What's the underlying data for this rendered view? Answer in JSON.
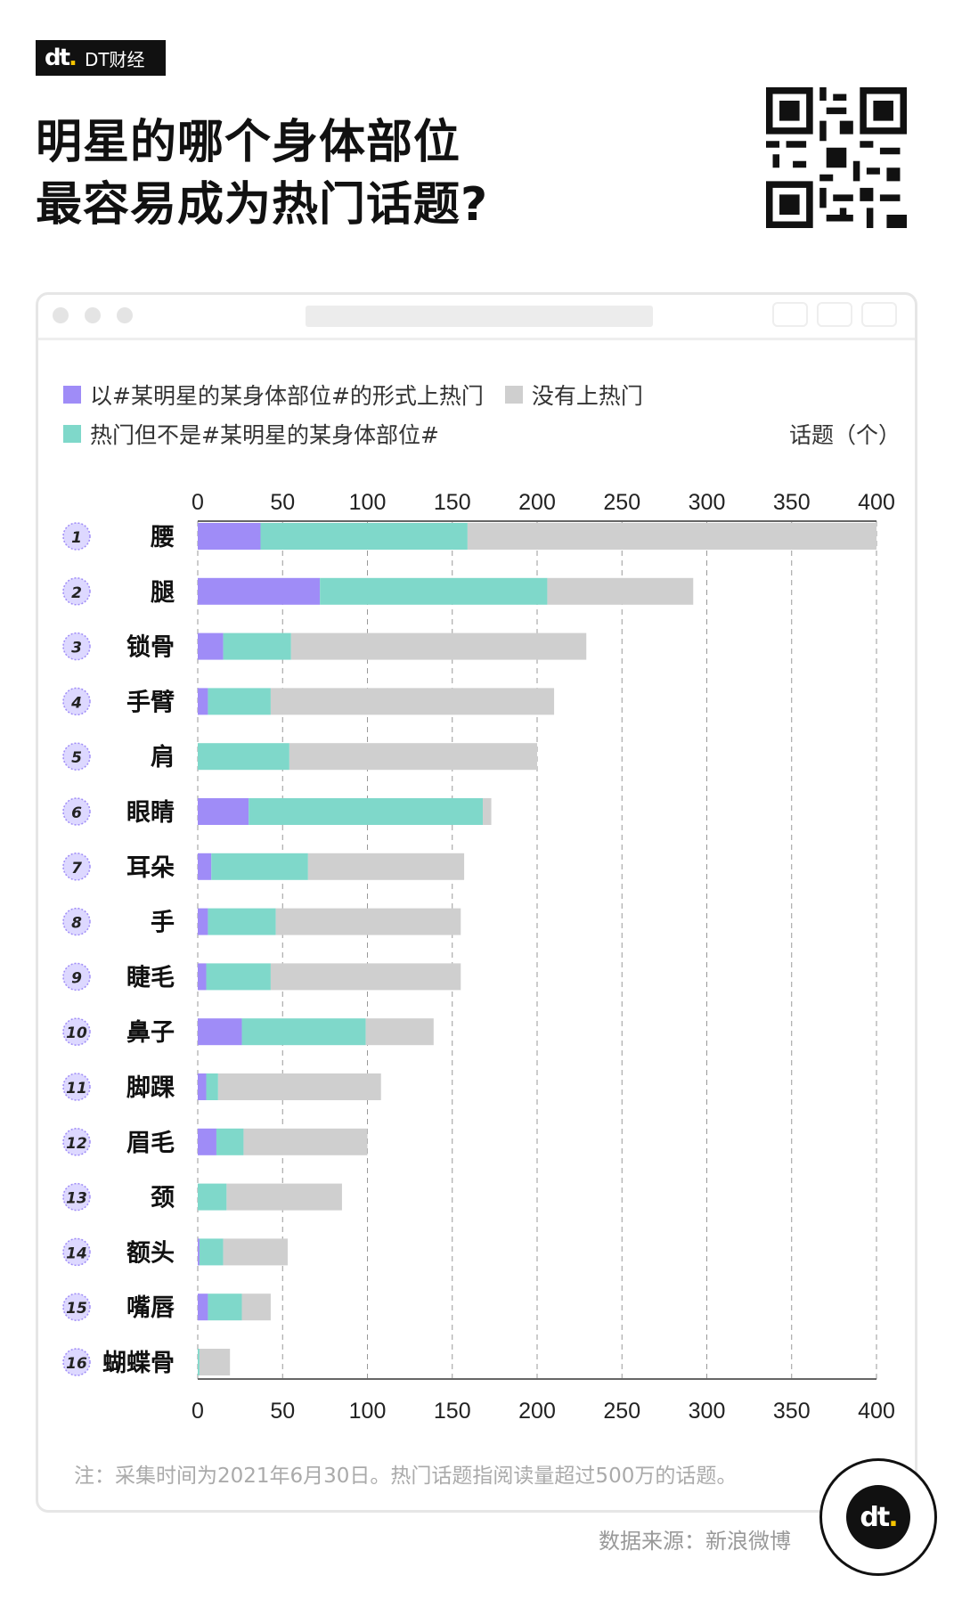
{
  "brand": {
    "name": "DT财经",
    "mark": "dt"
  },
  "title_lines": [
    "明星的哪个身体部位",
    "最容易成为热门话题?"
  ],
  "note": "注：采集时间为2021年6月30日。热门话题指阅读量超过500万的话题。",
  "source": "数据来源：新浪微博",
  "colors": {
    "purple": "#9f8cf7",
    "teal": "#7fd8ca",
    "gray": "#cfcfcf"
  },
  "chart_data": {
    "type": "bar",
    "stacked": true,
    "orientation": "horizontal",
    "unit_label": "话题（个）",
    "xlim": [
      0,
      400
    ],
    "ticks": [
      0,
      50,
      100,
      150,
      200,
      250,
      300,
      350,
      400
    ],
    "grid": true,
    "legend": [
      {
        "name": "以#某明星的某身体部位#的形式上热门",
        "color": "#9f8cf7"
      },
      {
        "name": "没有上热门",
        "color": "#cfcfcf"
      },
      {
        "name": "热门但不是#某明星的某身体部位#",
        "color": "#7fd8ca"
      }
    ],
    "categories": [
      "腰",
      "腿",
      "锁骨",
      "手臂",
      "肩",
      "眼睛",
      "耳朵",
      "手",
      "睫毛",
      "鼻子",
      "脚踝",
      "眉毛",
      "颈",
      "额头",
      "嘴唇",
      "蝴蝶骨"
    ],
    "ranks": [
      "1",
      "2",
      "3",
      "4",
      "5",
      "6",
      "7",
      "8",
      "9",
      "10",
      "11",
      "12",
      "13",
      "14",
      "15",
      "16"
    ],
    "series": [
      {
        "name": "以#某明星的某身体部位#的形式上热门",
        "values": [
          37,
          72,
          15,
          6,
          0,
          30,
          8,
          6,
          5,
          26,
          5,
          11,
          0,
          1,
          6,
          0
        ]
      },
      {
        "name": "热门但不是#某明星的某身体部位#",
        "values": [
          122,
          134,
          40,
          37,
          54,
          138,
          57,
          40,
          38,
          73,
          7,
          16,
          17,
          14,
          20,
          1
        ]
      },
      {
        "name": "没有上热门",
        "values": [
          241,
          86,
          174,
          167,
          146,
          5,
          92,
          109,
          112,
          40,
          96,
          73,
          68,
          38,
          17,
          18
        ]
      }
    ]
  }
}
